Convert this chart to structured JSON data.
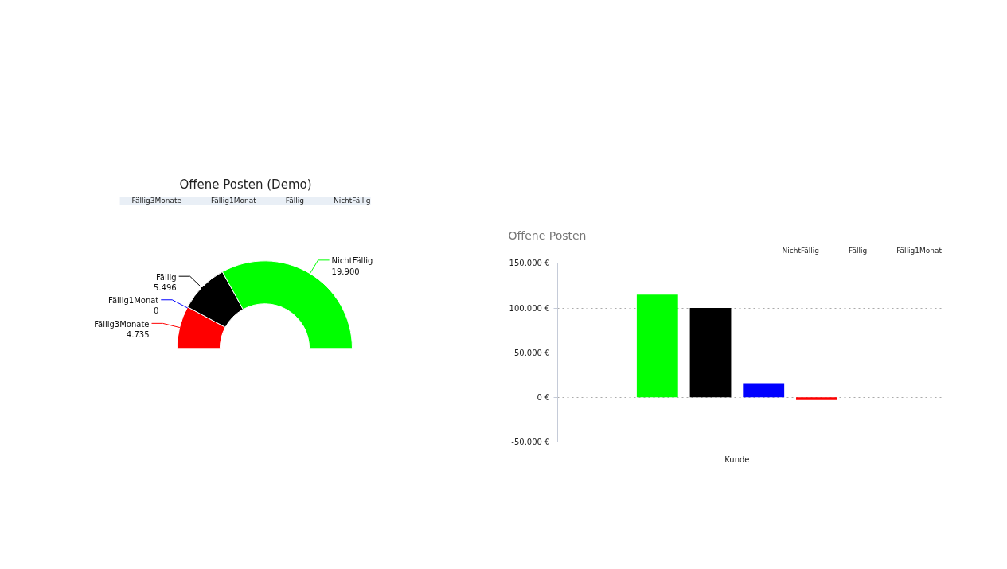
{
  "chart_data": [
    {
      "type": "donut",
      "title": "Offene Posten (Demo)",
      "categories": [
        "Fällig3Monate",
        "Fällig1Monat",
        "Fällig",
        "NichtFällig"
      ],
      "values": [
        4735,
        0,
        5496,
        19900
      ],
      "colors": [
        "#ff0000",
        "#0000ff",
        "#000000",
        "#00ff00"
      ],
      "value_labels": [
        "4.735",
        "0",
        "5.496",
        "19.900"
      ],
      "legend": "top"
    },
    {
      "type": "bar",
      "title": "Offene Posten",
      "categories": [
        "Kunde"
      ],
      "series": [
        {
          "name": "NichtFällig",
          "color": "#00ff00",
          "values": [
            115000
          ]
        },
        {
          "name": "Fällig",
          "color": "#000000",
          "values": [
            100000
          ]
        },
        {
          "name": "Fällig1Monat",
          "color": "#0000ff",
          "values": [
            16000
          ]
        },
        {
          "color": "#ff0000",
          "values": [
            -3000
          ]
        }
      ],
      "ylim": [
        -50000,
        150000
      ],
      "yticks": [
        {
          "value": -50000,
          "label": "-50.000 €"
        },
        {
          "value": 0,
          "label": "0 €"
        },
        {
          "value": 50000,
          "label": "50.000 €"
        },
        {
          "value": 100000,
          "label": "100.000 €"
        },
        {
          "value": 150000,
          "label": "150.000 €"
        }
      ],
      "grid": "y",
      "legend": "top right"
    }
  ]
}
